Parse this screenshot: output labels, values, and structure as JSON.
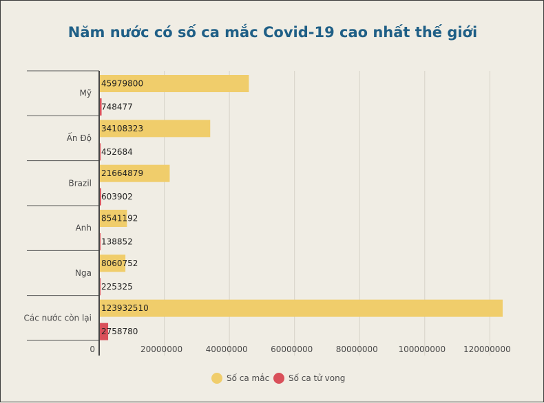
{
  "chart_data": {
    "type": "bar",
    "orientation": "horizontal",
    "title": "Năm nước có số ca mắc Covid-19 cao nhất thế giới",
    "categories": [
      "Mỹ",
      "Ấn Độ",
      "Brazil",
      "Anh",
      "Nga",
      "Các nước còn lại"
    ],
    "series": [
      {
        "name": "Số ca mắc",
        "color": "#f0cd6b",
        "values": [
          45979800,
          34108323,
          21664879,
          8541192,
          8060752,
          123932510
        ]
      },
      {
        "name": "Số ca tử vong",
        "color": "#d9505a",
        "values": [
          748477,
          452684,
          603902,
          138852,
          225325,
          2758780
        ]
      }
    ],
    "x_ticks": [
      "0",
      "20000000",
      "40000000",
      "60000000",
      "80000000",
      "100000000",
      "120000000"
    ],
    "xlim": [
      0,
      125000000
    ],
    "grid": true,
    "legend_position": "bottom-center"
  }
}
